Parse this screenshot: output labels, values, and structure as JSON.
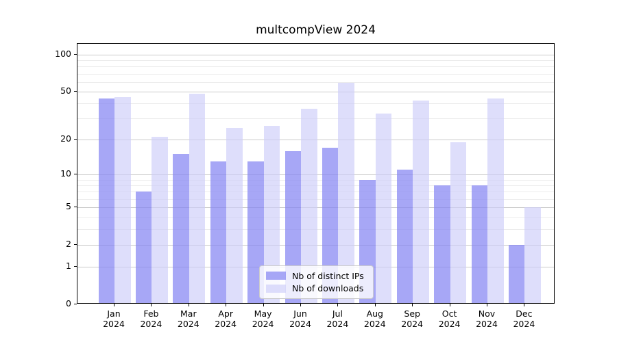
{
  "figure": {
    "title": "multcompView 2024"
  },
  "chart_data": {
    "type": "bar",
    "title": "multcompView 2024",
    "categories": [
      "Jan 2024",
      "Feb 2024",
      "Mar 2024",
      "Apr 2024",
      "May 2024",
      "Jun 2024",
      "Jul 2024",
      "Aug 2024",
      "Sep 2024",
      "Oct 2024",
      "Nov 2024",
      "Dec 2024"
    ],
    "series": [
      {
        "name": "Nb of distinct IPs",
        "color": "#8585f3",
        "alpha": 0.72,
        "values": [
          44,
          7,
          15,
          13,
          13,
          16,
          17,
          9,
          11,
          8,
          8,
          2
        ]
      },
      {
        "name": "Nb of downloads",
        "color": "#cbcbf8",
        "alpha": 0.64,
        "values": [
          45,
          21,
          48,
          25,
          26,
          36,
          59,
          33,
          42,
          19,
          44,
          5
        ]
      }
    ],
    "xlabel": "",
    "ylabel": "",
    "y_scale": "log1p",
    "y_ticks": [
      0,
      1,
      2,
      5,
      10,
      20,
      50,
      100
    ],
    "y_minor_ticks": [
      3,
      4,
      6,
      7,
      8,
      9,
      30,
      40,
      60,
      70,
      80,
      90
    ],
    "ylim": [
      0,
      122
    ],
    "grid": true,
    "legend_position": "lower center",
    "axis_color": "#000000",
    "grid_major_color": "#c9c9c9",
    "grid_minor_color": "#ebebeb"
  }
}
